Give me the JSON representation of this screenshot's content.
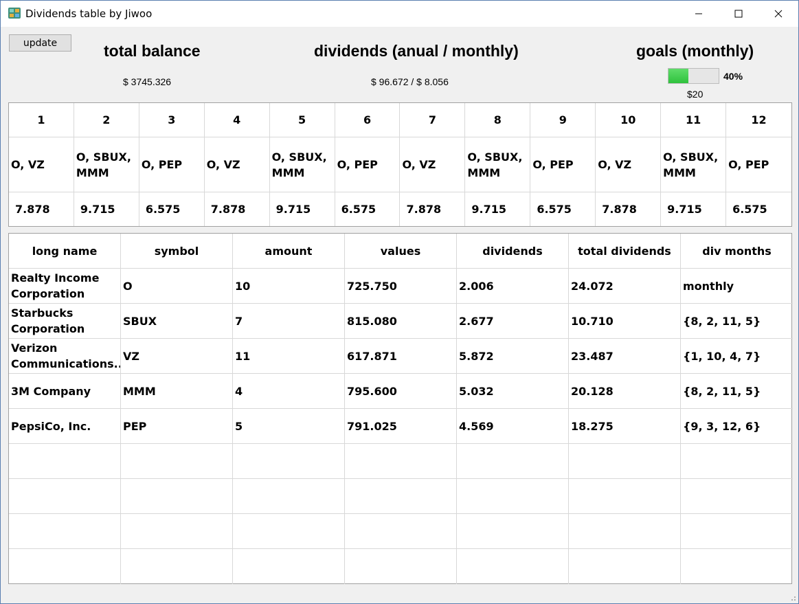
{
  "window": {
    "title": "Dividends table by Jiwoo"
  },
  "toolbar": {
    "update_label": "update"
  },
  "summary": {
    "balance_title": "total balance",
    "balance_value": "$  3745.326",
    "dividends_title": "dividends (anual / monthly)",
    "dividends_value": "$  96.672 / $  8.056",
    "goals_title": "goals (monthly)",
    "goal_progress_percent": 40,
    "goal_progress_label": "40%",
    "goal_amount": "$20",
    "progress_color": "#2fc23d"
  },
  "months": {
    "numbers": [
      "1",
      "2",
      "3",
      "4",
      "5",
      "6",
      "7",
      "8",
      "9",
      "10",
      "11",
      "12"
    ],
    "tickers": [
      "O, VZ",
      "O, SBUX, MMM",
      "O, PEP",
      "O, VZ",
      "O, SBUX, MMM",
      "O, PEP",
      "O, VZ",
      "O, SBUX, MMM",
      "O, PEP",
      "O, VZ",
      "O, SBUX, MMM",
      "O, PEP"
    ],
    "values": [
      "7.878",
      "9.715",
      "6.575",
      "7.878",
      "9.715",
      "6.575",
      "7.878",
      "9.715",
      "6.575",
      "7.878",
      "9.715",
      "6.575"
    ]
  },
  "holdings": {
    "columns": [
      "long name",
      "symbol",
      "amount",
      "values",
      "dividends",
      "total dividends",
      "div months"
    ],
    "rows": [
      [
        "Realty Income Corporation",
        "O",
        "10",
        "725.750",
        "2.006",
        "24.072",
        "monthly"
      ],
      [
        "Starbucks Corporation",
        "SBUX",
        "7",
        "815.080",
        "2.677",
        "10.710",
        "{8, 2, 11, 5}"
      ],
      [
        "Verizon Communications...",
        "VZ",
        "11",
        "617.871",
        "5.872",
        "23.487",
        "{1, 10, 4, 7}"
      ],
      [
        "3M Company",
        "MMM",
        "4",
        "795.600",
        "5.032",
        "20.128",
        "{8, 2, 11, 5}"
      ],
      [
        "PepsiCo, Inc.",
        "PEP",
        "5",
        "791.025",
        "4.569",
        "18.275",
        "{9, 3, 12, 6}"
      ]
    ],
    "empty_rows": 4
  }
}
